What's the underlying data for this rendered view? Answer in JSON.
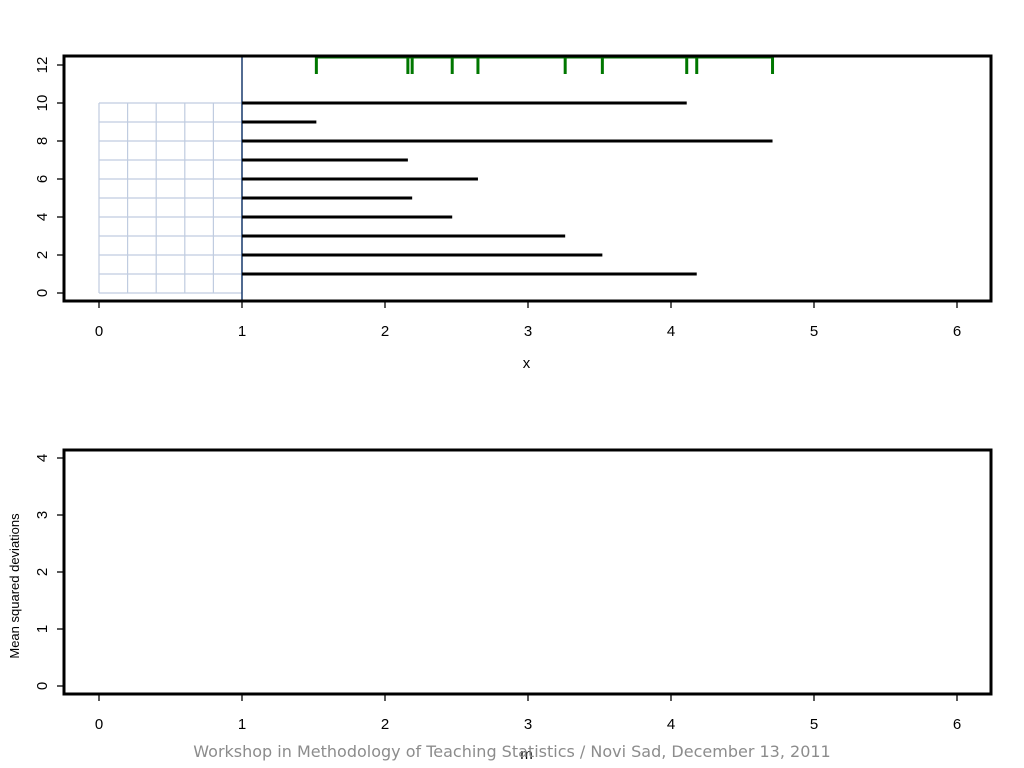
{
  "footer": "Workshop in Methodology of Teaching Statistics / Novi Sad, December 13, 2011",
  "chart_data": [
    {
      "type": "line",
      "xlabel": "x",
      "ylabel": "",
      "xlim": [
        0,
        6
      ],
      "ylim": [
        0,
        12
      ],
      "x_ticks": [
        0,
        1,
        2,
        3,
        4,
        5,
        6
      ],
      "y_ticks": [
        0,
        2,
        4,
        6,
        8,
        10,
        12
      ],
      "grid": "grid of light blue lines over x from 0 to 1 (spacing 0.2) and y from 0 to 10 (spacing 1)",
      "segments": [
        {
          "y": 1,
          "x_end": 4.18
        },
        {
          "y": 2,
          "x_end": 3.52
        },
        {
          "y": 3,
          "x_end": 3.26
        },
        {
          "y": 4,
          "x_end": 2.47
        },
        {
          "y": 5,
          "x_end": 2.19
        },
        {
          "y": 6,
          "x_end": 2.65
        },
        {
          "y": 7,
          "x_end": 2.16
        },
        {
          "y": 8,
          "x_end": 4.71
        },
        {
          "y": 9,
          "x_end": 1.52
        },
        {
          "y": 10,
          "x_end": 4.11
        }
      ],
      "segment_start": 1,
      "rug": {
        "y": 12,
        "values": [
          1.52,
          2.16,
          2.19,
          2.47,
          2.65,
          3.26,
          3.52,
          4.11,
          4.18,
          4.71
        ]
      },
      "colors": {
        "segments": "#000000",
        "rug": "#007700",
        "grid": "#c0cce0",
        "ref_line": "#1a3c6e"
      }
    },
    {
      "type": "line",
      "xlabel": "m",
      "ylabel": "Mean squared deviations",
      "xlim": [
        0,
        6
      ],
      "ylim": [
        0,
        4
      ],
      "x_ticks": [
        0,
        1,
        2,
        3,
        4,
        5,
        6
      ],
      "y_ticks": [
        0,
        1,
        2,
        3,
        4
      ],
      "series": []
    }
  ]
}
